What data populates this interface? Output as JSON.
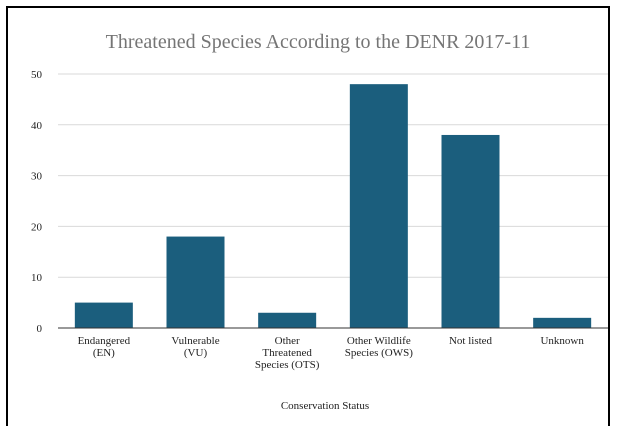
{
  "chart_data": {
    "type": "bar",
    "title": "Threatened Species According to the DENR 2017-11",
    "xlabel": "Conservation Status",
    "ylabel": "",
    "categories": [
      [
        "Endangered",
        "(EN)"
      ],
      [
        "Vulnerable",
        "(VU)"
      ],
      [
        "Other",
        "Threatened",
        "Species (OTS)"
      ],
      [
        "Other Wildlife",
        "Species (OWS)"
      ],
      [
        "Not listed"
      ],
      [
        "Unknown"
      ]
    ],
    "values": [
      5,
      18,
      3,
      48,
      38,
      2
    ],
    "ylim": [
      0,
      50
    ],
    "yticks": [
      0,
      10,
      20,
      30,
      40,
      50
    ],
    "grid": true,
    "legend": "none",
    "bar_color": "#1b5e7d",
    "grid_color": "#d9d9d9",
    "axis_color": "#333333"
  }
}
